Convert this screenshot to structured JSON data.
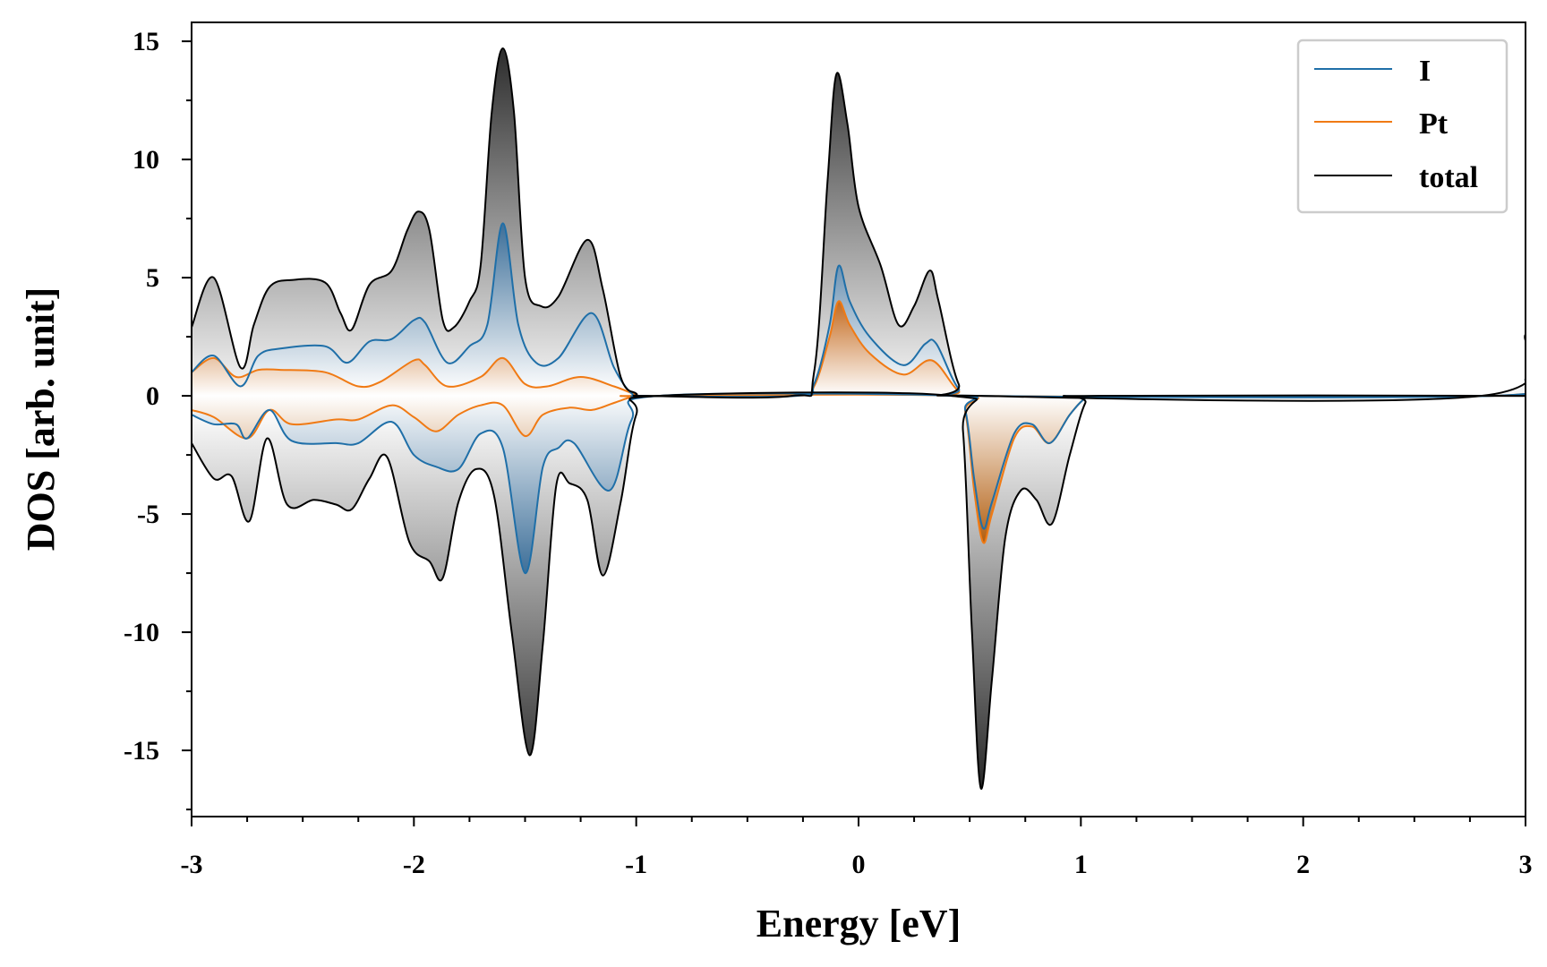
{
  "chart_data": {
    "type": "line",
    "title": "",
    "xlabel": "Energy [eV]",
    "ylabel": "DOS [arb. unit]",
    "xlim": [
      -3,
      3
    ],
    "ylim": [
      -17.8,
      15.8
    ],
    "xticks": [
      -3,
      -2,
      -1,
      0,
      1,
      2,
      3
    ],
    "xtick_labels": [
      "-3",
      "-2",
      "-1",
      "0",
      "1",
      "2",
      "3"
    ],
    "yticks": [
      -15,
      -10,
      -5,
      0,
      5,
      10,
      15
    ],
    "ytick_labels": [
      "-15",
      "-10",
      "-5",
      "0",
      "5",
      "10",
      "15"
    ],
    "grid": false,
    "legend_position": "top-right",
    "colors": {
      "I": "#1f6fa8",
      "Pt": "#f07a14",
      "total": "#000000"
    },
    "series": [
      {
        "name": "I",
        "up": [
          [
            -3,
            1.0
          ],
          [
            -2.9,
            1.7
          ],
          [
            -2.78,
            0.4
          ],
          [
            -2.7,
            1.7
          ],
          [
            -2.6,
            2.0
          ],
          [
            -2.4,
            2.1
          ],
          [
            -2.3,
            1.4
          ],
          [
            -2.2,
            2.3
          ],
          [
            -2.1,
            2.4
          ],
          [
            -2.0,
            3.2
          ],
          [
            -1.95,
            3.1
          ],
          [
            -1.85,
            1.4
          ],
          [
            -1.75,
            2.1
          ],
          [
            -1.67,
            3.0
          ],
          [
            -1.6,
            7.3
          ],
          [
            -1.53,
            3.0
          ],
          [
            -1.45,
            1.4
          ],
          [
            -1.35,
            1.6
          ],
          [
            -1.2,
            3.5
          ],
          [
            -1.1,
            1.2
          ],
          [
            -1.02,
            0.1
          ],
          [
            -0.95,
            0
          ],
          [
            -0.28,
            0
          ],
          [
            -0.2,
            0.5
          ],
          [
            -0.13,
            3.0
          ],
          [
            -0.09,
            5.5
          ],
          [
            -0.04,
            4.0
          ],
          [
            0.05,
            2.5
          ],
          [
            0.2,
            1.3
          ],
          [
            0.3,
            2.2
          ],
          [
            0.35,
            2.2
          ],
          [
            0.45,
            0.3
          ],
          [
            0.55,
            0
          ],
          [
            2.85,
            0
          ],
          [
            3.0,
            0.7
          ]
        ],
        "down": [
          [
            -3,
            -0.8
          ],
          [
            -2.9,
            -1.2
          ],
          [
            -2.8,
            -1.2
          ],
          [
            -2.75,
            -1.8
          ],
          [
            -2.65,
            -0.6
          ],
          [
            -2.55,
            -1.9
          ],
          [
            -2.35,
            -2.0
          ],
          [
            -2.25,
            -2.0
          ],
          [
            -2.1,
            -1.1
          ],
          [
            -2.0,
            -2.5
          ],
          [
            -1.9,
            -3.0
          ],
          [
            -1.8,
            -3.1
          ],
          [
            -1.7,
            -1.6
          ],
          [
            -1.6,
            -2.2
          ],
          [
            -1.5,
            -7.5
          ],
          [
            -1.42,
            -3.0
          ],
          [
            -1.35,
            -2.2
          ],
          [
            -1.28,
            -2.0
          ],
          [
            -1.12,
            -4.0
          ],
          [
            -1.02,
            -1.0
          ],
          [
            -0.9,
            0
          ],
          [
            0.42,
            0
          ],
          [
            0.48,
            -0.6
          ],
          [
            0.52,
            -3.5
          ],
          [
            0.56,
            -5.6
          ],
          [
            0.6,
            -4.5
          ],
          [
            0.7,
            -1.6
          ],
          [
            0.78,
            -1.2
          ],
          [
            0.86,
            -2.0
          ],
          [
            0.95,
            -0.8
          ],
          [
            1.02,
            -0.1
          ],
          [
            1.08,
            0
          ],
          [
            3.0,
            0
          ]
        ]
      },
      {
        "name": "Pt",
        "up": [
          [
            -3,
            1.0
          ],
          [
            -2.9,
            1.6
          ],
          [
            -2.8,
            0.8
          ],
          [
            -2.7,
            1.1
          ],
          [
            -2.6,
            1.1
          ],
          [
            -2.4,
            1.0
          ],
          [
            -2.25,
            0.4
          ],
          [
            -2.15,
            0.6
          ],
          [
            -2.0,
            1.5
          ],
          [
            -1.95,
            1.3
          ],
          [
            -1.85,
            0.4
          ],
          [
            -1.7,
            0.8
          ],
          [
            -1.6,
            1.6
          ],
          [
            -1.5,
            0.5
          ],
          [
            -1.4,
            0.4
          ],
          [
            -1.25,
            0.8
          ],
          [
            -1.1,
            0.4
          ],
          [
            -1.0,
            0.05
          ],
          [
            -0.95,
            0
          ],
          [
            -0.28,
            0
          ],
          [
            -0.2,
            0.4
          ],
          [
            -0.13,
            2.5
          ],
          [
            -0.09,
            4.0
          ],
          [
            -0.04,
            3.0
          ],
          [
            0.05,
            1.8
          ],
          [
            0.2,
            0.9
          ],
          [
            0.33,
            1.5
          ],
          [
            0.45,
            0.2
          ],
          [
            0.55,
            0
          ],
          [
            2.85,
            0
          ],
          [
            3.0,
            0.7
          ]
        ],
        "down": [
          [
            -3,
            -0.6
          ],
          [
            -2.9,
            -0.9
          ],
          [
            -2.75,
            -1.8
          ],
          [
            -2.65,
            -0.6
          ],
          [
            -2.55,
            -1.2
          ],
          [
            -2.35,
            -1.0
          ],
          [
            -2.25,
            -1.0
          ],
          [
            -2.1,
            -0.4
          ],
          [
            -2.0,
            -0.9
          ],
          [
            -1.9,
            -1.5
          ],
          [
            -1.8,
            -0.8
          ],
          [
            -1.7,
            -0.4
          ],
          [
            -1.6,
            -0.4
          ],
          [
            -1.5,
            -1.7
          ],
          [
            -1.42,
            -0.8
          ],
          [
            -1.3,
            -0.5
          ],
          [
            -1.2,
            -0.6
          ],
          [
            -1.1,
            -0.3
          ],
          [
            -1.02,
            -0.05
          ],
          [
            -0.95,
            0
          ],
          [
            0.42,
            0
          ],
          [
            0.48,
            -0.7
          ],
          [
            0.52,
            -4.0
          ],
          [
            0.56,
            -6.2
          ],
          [
            0.6,
            -5.0
          ],
          [
            0.7,
            -1.8
          ],
          [
            0.78,
            -1.3
          ],
          [
            0.86,
            -2.0
          ],
          [
            0.95,
            -0.8
          ],
          [
            1.02,
            -0.1
          ],
          [
            1.08,
            0
          ],
          [
            3.0,
            0
          ]
        ]
      },
      {
        "name": "total",
        "up": [
          [
            -3,
            2.9
          ],
          [
            -2.9,
            5.0
          ],
          [
            -2.78,
            1.2
          ],
          [
            -2.72,
            3.0
          ],
          [
            -2.65,
            4.6
          ],
          [
            -2.55,
            4.9
          ],
          [
            -2.4,
            4.8
          ],
          [
            -2.33,
            3.5
          ],
          [
            -2.28,
            2.8
          ],
          [
            -2.2,
            4.7
          ],
          [
            -2.1,
            5.3
          ],
          [
            -2.03,
            7.0
          ],
          [
            -1.98,
            7.8
          ],
          [
            -1.93,
            7.0
          ],
          [
            -1.87,
            3.2
          ],
          [
            -1.82,
            2.9
          ],
          [
            -1.75,
            4.0
          ],
          [
            -1.7,
            5.5
          ],
          [
            -1.65,
            12.0
          ],
          [
            -1.6,
            14.7
          ],
          [
            -1.55,
            12.0
          ],
          [
            -1.5,
            5.0
          ],
          [
            -1.43,
            3.8
          ],
          [
            -1.35,
            4.2
          ],
          [
            -1.22,
            6.6
          ],
          [
            -1.15,
            4.5
          ],
          [
            -1.07,
            0.8
          ],
          [
            -1.0,
            0.1
          ],
          [
            -0.95,
            0
          ],
          [
            -0.3,
            0
          ],
          [
            -0.2,
            1.0
          ],
          [
            -0.14,
            9.0
          ],
          [
            -0.1,
            13.6
          ],
          [
            -0.05,
            11.5
          ],
          [
            0.0,
            8.0
          ],
          [
            0.1,
            5.5
          ],
          [
            0.18,
            3.0
          ],
          [
            0.25,
            3.8
          ],
          [
            0.32,
            5.3
          ],
          [
            0.36,
            4.0
          ],
          [
            0.45,
            0.5
          ],
          [
            0.55,
            0
          ],
          [
            2.8,
            0
          ],
          [
            3.0,
            2.6
          ]
        ],
        "down": [
          [
            -3,
            -2.0
          ],
          [
            -2.9,
            -3.5
          ],
          [
            -2.82,
            -3.4
          ],
          [
            -2.74,
            -5.3
          ],
          [
            -2.66,
            -1.8
          ],
          [
            -2.57,
            -4.6
          ],
          [
            -2.45,
            -4.4
          ],
          [
            -2.35,
            -4.6
          ],
          [
            -2.28,
            -4.8
          ],
          [
            -2.2,
            -3.5
          ],
          [
            -2.12,
            -2.6
          ],
          [
            -2.02,
            -6.2
          ],
          [
            -1.93,
            -7.0
          ],
          [
            -1.87,
            -7.7
          ],
          [
            -1.8,
            -4.5
          ],
          [
            -1.72,
            -3.1
          ],
          [
            -1.64,
            -4.2
          ],
          [
            -1.56,
            -10.0
          ],
          [
            -1.48,
            -15.2
          ],
          [
            -1.42,
            -10.5
          ],
          [
            -1.36,
            -3.8
          ],
          [
            -1.3,
            -3.7
          ],
          [
            -1.22,
            -4.4
          ],
          [
            -1.15,
            -7.6
          ],
          [
            -1.07,
            -4.5
          ],
          [
            -1.0,
            -0.8
          ],
          [
            -0.9,
            0
          ],
          [
            0.42,
            0
          ],
          [
            0.47,
            -1.5
          ],
          [
            0.51,
            -10.0
          ],
          [
            0.55,
            -16.6
          ],
          [
            0.6,
            -12.0
          ],
          [
            0.66,
            -6.0
          ],
          [
            0.73,
            -4.0
          ],
          [
            0.8,
            -4.4
          ],
          [
            0.87,
            -5.4
          ],
          [
            0.95,
            -2.5
          ],
          [
            1.02,
            -0.3
          ],
          [
            1.08,
            0
          ],
          [
            3.0,
            0
          ]
        ]
      }
    ]
  }
}
